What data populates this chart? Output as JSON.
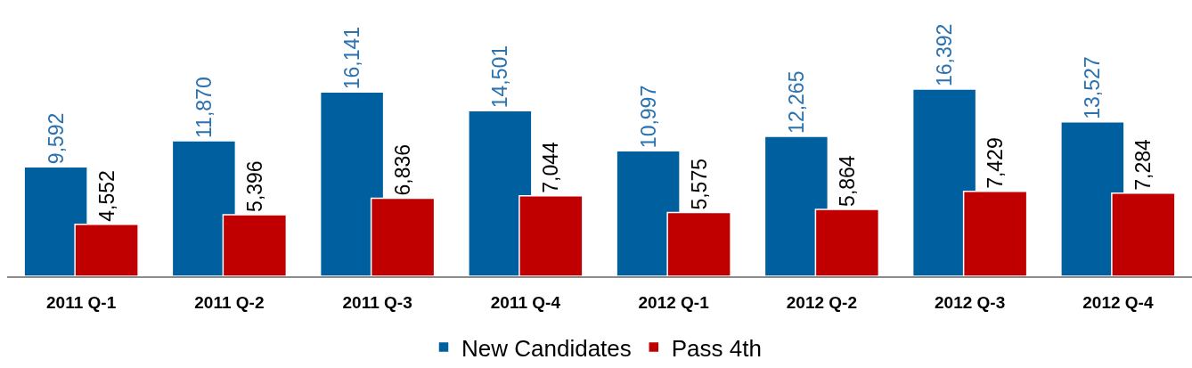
{
  "chart_data": {
    "type": "bar",
    "categories": [
      "2011 Q-1",
      "2011 Q-2",
      "2011 Q-3",
      "2011 Q-4",
      "2012 Q-1",
      "2012 Q-2",
      "2012 Q-3",
      "2012 Q-4"
    ],
    "series": [
      {
        "name": "New Candidates",
        "color": "#005f9e",
        "values": [
          9592,
          11870,
          16141,
          14501,
          10997,
          12265,
          16392,
          13527
        ],
        "value_labels": [
          "9,592",
          "11,870",
          "16,141",
          "14,501",
          "10,997",
          "12,265",
          "16,392",
          "13,527"
        ]
      },
      {
        "name": "Pass 4th",
        "color": "#c00000",
        "values": [
          4552,
          5396,
          6836,
          7044,
          5575,
          5864,
          7429,
          7284
        ],
        "value_labels": [
          "4,552",
          "5,396",
          "6,836",
          "7,044",
          "5,575",
          "5,864",
          "7,429",
          "7,284"
        ]
      }
    ],
    "tick_labels": "x",
    "legend": "bottom"
  }
}
